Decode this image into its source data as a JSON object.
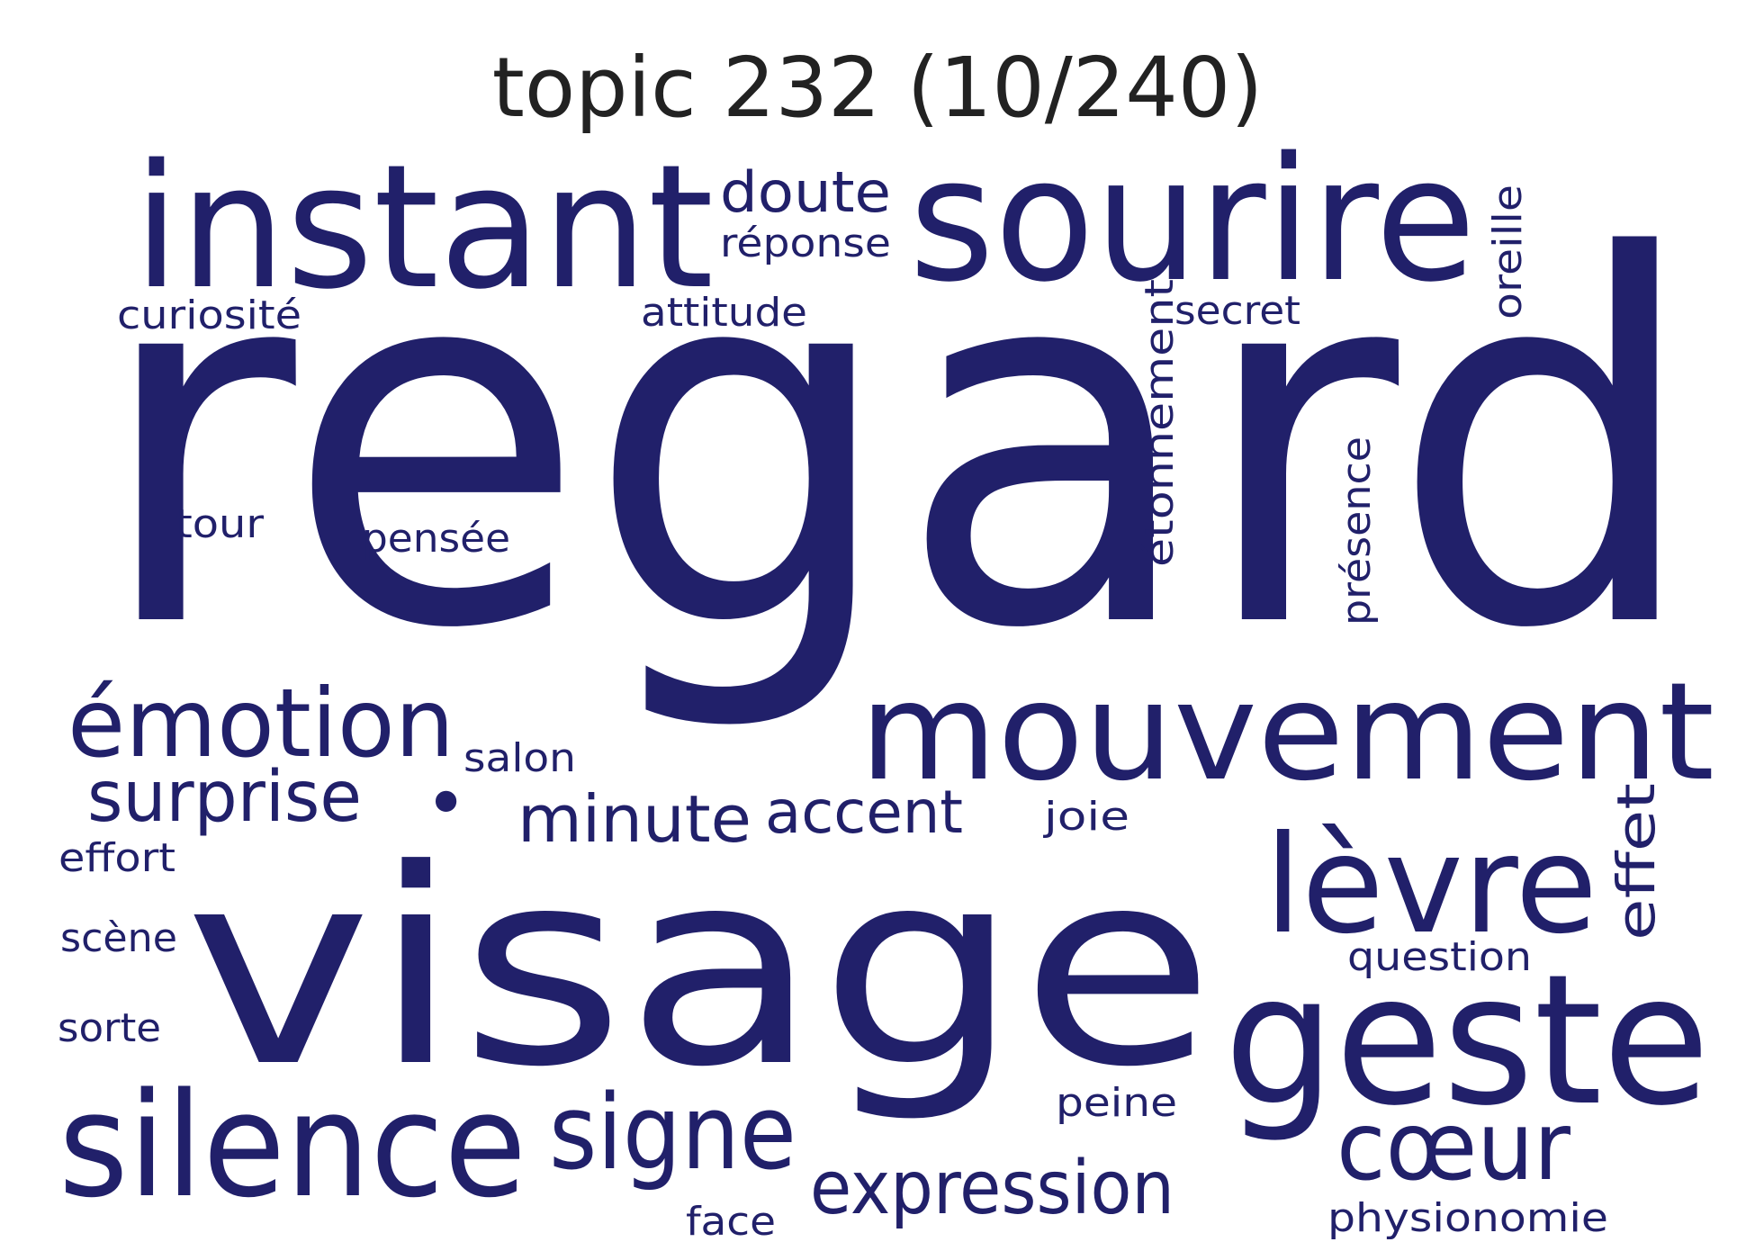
{
  "title": "topic 232 (10/240)",
  "color": "#21206a",
  "words": [
    {
      "text": "regard"
    },
    {
      "text": "visage"
    },
    {
      "text": "instant"
    },
    {
      "text": "sourire"
    },
    {
      "text": "mouvement"
    },
    {
      "text": "geste"
    },
    {
      "text": "silence"
    },
    {
      "text": "lèvre"
    },
    {
      "text": "émotion"
    },
    {
      "text": "signe"
    },
    {
      "text": "cœur"
    },
    {
      "text": "expression"
    },
    {
      "text": "surprise"
    },
    {
      "text": "minute"
    },
    {
      "text": "accent"
    },
    {
      "text": "doute"
    },
    {
      "text": "effet"
    },
    {
      "text": "étonnement"
    },
    {
      "text": "réponse"
    },
    {
      "text": "attitude"
    },
    {
      "text": "curiosité"
    },
    {
      "text": "secret"
    },
    {
      "text": "oreille"
    },
    {
      "text": "présence"
    },
    {
      "text": "pensée"
    },
    {
      "text": "tour"
    },
    {
      "text": "salon"
    },
    {
      "text": "joie"
    },
    {
      "text": "effort"
    },
    {
      "text": "scène"
    },
    {
      "text": "sorte"
    },
    {
      "text": "question"
    },
    {
      "text": "peine"
    },
    {
      "text": "face"
    },
    {
      "text": "physionomie"
    },
    {
      "text": "•"
    }
  ]
}
